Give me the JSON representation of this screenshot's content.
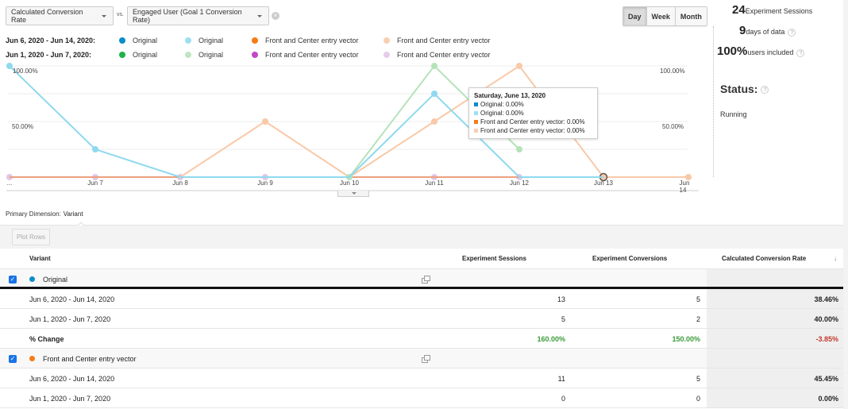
{
  "controls": {
    "primary_metric": "Calculated Conversion Rate",
    "vs_label": "vs.",
    "secondary_metric": "Engaged User (Goal 1 Conversion Rate)",
    "period_buttons": [
      {
        "label": "Day",
        "active": true
      },
      {
        "label": "Week",
        "active": false
      },
      {
        "label": "Month",
        "active": false
      }
    ]
  },
  "legend": {
    "rows": [
      {
        "range": "Jun 6, 2020 - Jun 14, 2020:",
        "items": [
          {
            "label": "Original",
            "color": "#0b8dc9"
          },
          {
            "label": "Original",
            "color": "#9ddff2"
          },
          {
            "label": "Front and Center entry vector",
            "color": "#f57c14"
          },
          {
            "label": "Front and Center entry vector",
            "color": "#f9cfb4"
          }
        ]
      },
      {
        "range": "Jun 1, 2020 - Jun 7, 2020:",
        "items": [
          {
            "label": "Original",
            "color": "#1fb34a"
          },
          {
            "label": "Original",
            "color": "#bfe6c4"
          },
          {
            "label": "Front and Center entry vector",
            "color": "#c247c8"
          },
          {
            "label": "Front and Center entry vector",
            "color": "#e7cdea"
          }
        ]
      }
    ]
  },
  "chart_data": {
    "type": "line",
    "title": "",
    "xlabel": "",
    "ylabel": "",
    "x": [
      "...",
      "Jun 7",
      "Jun 8",
      "Jun 9",
      "Jun 10",
      "Jun 11",
      "Jun 12",
      "Jun 13",
      "Jun 14"
    ],
    "y_left_ticks": [
      "100.00%",
      "50.00%"
    ],
    "y_right_ticks": [
      "100.00%",
      "50.00%"
    ],
    "ylim": [
      0,
      100
    ],
    "grid": true,
    "series": [
      {
        "name": "Original (Jun 6 - Jun 14, Engaged User)",
        "color": "#8fd9ef",
        "values": [
          100,
          25,
          0,
          0,
          0,
          75,
          0,
          0,
          null
        ]
      },
      {
        "name": "Front and Center entry vector (Jun 6 - Jun 14, Engaged User)",
        "color": "#f9c9a8",
        "values": [
          null,
          null,
          0,
          50,
          0,
          50,
          100,
          0,
          0
        ]
      },
      {
        "name": "Original (Jun 1 - Jun 7, Engaged User)",
        "color": "#b5e3b9",
        "values": [
          null,
          null,
          null,
          null,
          0,
          100,
          25,
          null,
          null
        ]
      },
      {
        "name": "Front and Center entry vector (Jun 1 - Jun 7, Engaged User)",
        "color": "#e2c6e8",
        "values": [
          0,
          0,
          0,
          0,
          0,
          0,
          0,
          null,
          null
        ]
      },
      {
        "name": "Original (Jun 6 - Jun 14, Calculated)",
        "color": "#0b8dc9",
        "values": [
          0,
          0,
          0,
          0,
          0,
          0,
          0,
          0,
          0
        ]
      },
      {
        "name": "Front and Center entry vector (Jun 6 - Jun 14, Calculated)",
        "color": "#f57c14",
        "values": [
          0,
          0,
          0,
          0,
          0,
          0,
          0,
          0,
          0
        ]
      }
    ],
    "legend_position": "top",
    "tooltip": {
      "title": "Saturday, June 13, 2020",
      "rows": [
        {
          "label": "Original: 0.00%",
          "color": "#0b8dc9"
        },
        {
          "label": "Original: 0.00%",
          "color": "#9ddff2"
        },
        {
          "label": "Front and Center entry vector: 0.00%",
          "color": "#f57c14"
        },
        {
          "label": "Front and Center entry vector: 0.00%",
          "color": "#f9cfb4"
        }
      ]
    }
  },
  "summary": {
    "sessions_value": "24",
    "sessions_label": "Experiment Sessions",
    "days_value": "9",
    "days_label": "days of data",
    "users_value": "100%",
    "users_label": "users included",
    "status_title": "Status:",
    "status_value": "Running",
    "help_glyph": "?"
  },
  "dimension": {
    "label": "Primary Dimension:",
    "value": "Variant"
  },
  "toolbar": {
    "plot_rows": "Plot Rows"
  },
  "table": {
    "headers": {
      "variant": "Variant",
      "sessions": "Experiment Sessions",
      "conversions": "Experiment Conversions",
      "rate": "Calculated Conversion Rate",
      "sort_icon": "↓"
    },
    "groups": [
      {
        "name": "Original",
        "color": "#0b8dc9",
        "checked": true,
        "rows": [
          {
            "label": "Jun 6, 2020 - Jun 14, 2020",
            "sessions": "13",
            "conversions": "5",
            "rate": "38.46%"
          },
          {
            "label": "Jun 1, 2020 - Jun 7, 2020",
            "sessions": "5",
            "conversions": "2",
            "rate": "40.00%"
          }
        ],
        "change": {
          "label": "% Change",
          "sessions": "160.00%",
          "conversions": "150.00%",
          "rate": "-3.85%"
        }
      },
      {
        "name": "Front and Center entry vector",
        "color": "#f57c14",
        "checked": true,
        "rows": [
          {
            "label": "Jun 6, 2020 - Jun 14, 2020",
            "sessions": "11",
            "conversions": "5",
            "rate": "45.45%"
          },
          {
            "label": "Jun 1, 2020 - Jun 7, 2020",
            "sessions": "0",
            "conversions": "0",
            "rate": "0.00%"
          }
        ]
      }
    ]
  }
}
